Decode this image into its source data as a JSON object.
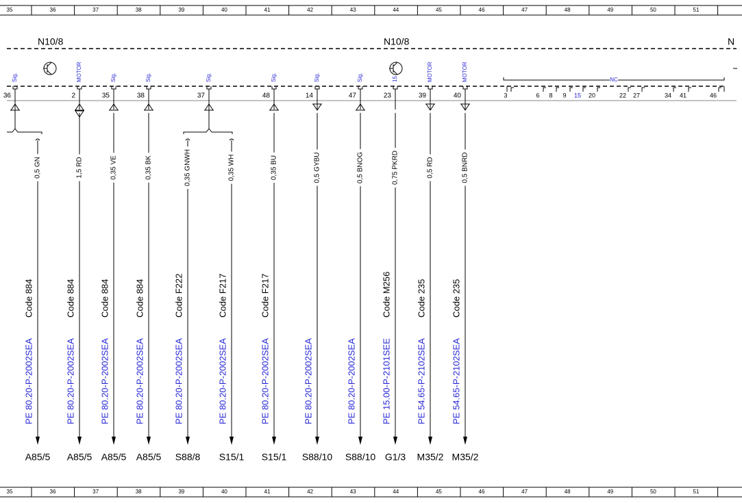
{
  "ruler": {
    "columns": [
      "35",
      "36",
      "37",
      "38",
      "39",
      "40",
      "41",
      "42",
      "43",
      "44",
      "45",
      "46",
      "47",
      "48",
      "49",
      "50",
      "51"
    ]
  },
  "components": [
    "N10/8",
    "N10/8",
    "N"
  ],
  "connectors": [
    {
      "pin": "36",
      "tag": "Sig."
    },
    {
      "pin": "2",
      "tag": "MOTOR"
    },
    {
      "pin": "35",
      "tag": "Sig."
    },
    {
      "pin": "38",
      "tag": "Sig."
    },
    {
      "pin": "37",
      "tag": "Sig."
    },
    {
      "pin": "48",
      "tag": "Sig."
    },
    {
      "pin": "14",
      "tag": "Sig."
    },
    {
      "pin": "47",
      "tag": "Sig."
    },
    {
      "pin": "23",
      "tag": "15"
    },
    {
      "pin": "39",
      "tag": "MOTOR"
    },
    {
      "pin": "40",
      "tag": "MOTOR"
    }
  ],
  "wires": [
    {
      "label": "0,5 GN",
      "code": "Code 884",
      "reference": "PE 80.20-P-2002SEA",
      "destination": "A85/5"
    },
    {
      "label": "1,5 RD",
      "code": "Code 884",
      "reference": "PE 80.20-P-2002SEA",
      "destination": "A85/5"
    },
    {
      "label": "0,35 VE",
      "code": "Code 884",
      "reference": "PE 80.20-P-2002SEA",
      "destination": "A85/5"
    },
    {
      "label": "0,35 BK",
      "code": "Code 884",
      "reference": "PE 80.20-P-2002SEA",
      "destination": "A85/5"
    },
    {
      "label": "0,35 GNWH",
      "code": "Code F222",
      "reference": "PE 80.20-P-2002SEA",
      "destination": "S88/8"
    },
    {
      "label": "0,35 WH",
      "code": "Code F217",
      "reference": "PE 80.20-P-2002SEA",
      "destination": "S15/1"
    },
    {
      "label": "0,35 BU",
      "code": "Code F217",
      "reference": "PE 80.20-P-2002SEA",
      "destination": "S15/1"
    },
    {
      "label": "0,5 GYBU",
      "reference": "PE 80.20-P-2002SEA",
      "destination": "S88/10"
    },
    {
      "label": "0,5 BNOG",
      "reference": "PE 80.20-P-2002SEA",
      "destination": "S88/10"
    },
    {
      "label": "0,75 PKRD",
      "code": "Code M256",
      "reference": "PE 15.00-P-2101SEE",
      "destination": "G1/3"
    },
    {
      "label": "0,5 RD",
      "code": "Code 235",
      "reference": "PE 54.65-P-2102SEA",
      "destination": "M35/2"
    },
    {
      "label": "0,5 BNRD",
      "code": "Code 235",
      "reference": "PE 54.65-P-2102SEA",
      "destination": "M35/2"
    }
  ],
  "nc_group": {
    "label": "NC",
    "pins": [
      "3",
      "6",
      "8",
      "9",
      "15",
      "20",
      "22",
      "27",
      "34",
      "41",
      "46"
    ]
  }
}
